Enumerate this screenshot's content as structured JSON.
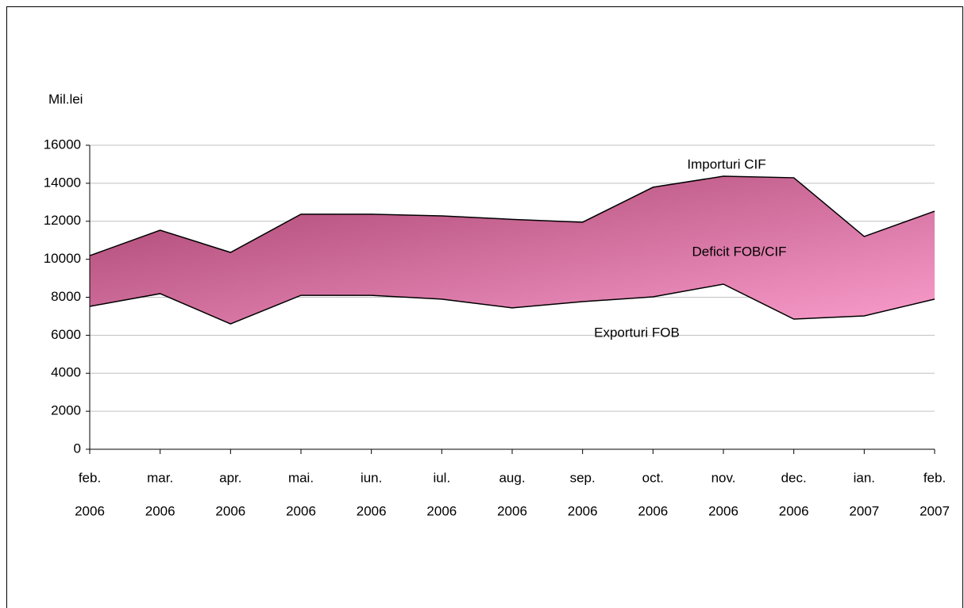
{
  "chart_data": {
    "type": "area",
    "y_label": "Mil.lei",
    "categories": [
      [
        "feb.",
        "2006"
      ],
      [
        "mar.",
        "2006"
      ],
      [
        "apr.",
        "2006"
      ],
      [
        "mai.",
        "2006"
      ],
      [
        "iun.",
        "2006"
      ],
      [
        "iul.",
        "2006"
      ],
      [
        "aug.",
        "2006"
      ],
      [
        "sep.",
        "2006"
      ],
      [
        "oct.",
        "2006"
      ],
      [
        "nov.",
        "2006"
      ],
      [
        "dec.",
        "2006"
      ],
      [
        "ian.",
        "2007"
      ],
      [
        "feb.",
        "2007"
      ]
    ],
    "series": [
      {
        "name": "Importuri CIF",
        "color": "#000000",
        "values": [
          10190,
          11530,
          10360,
          12370,
          12370,
          12280,
          12100,
          11950,
          13790,
          14370,
          14290,
          11200,
          12530
        ]
      },
      {
        "name": "Exporturi FOB",
        "color": "#000000",
        "values": [
          7520,
          8190,
          6600,
          8100,
          8100,
          7900,
          7440,
          7770,
          8020,
          8690,
          6850,
          7020,
          7900
        ]
      }
    ],
    "area_label": "Deficit FOB/CIF",
    "fill_colors": [
      "#a6406c",
      "#fa9dcc"
    ],
    "ylim": [
      0,
      16000
    ],
    "yticks": [
      0,
      2000,
      4000,
      6000,
      8000,
      10000,
      12000,
      14000,
      16000
    ],
    "grid": true
  }
}
